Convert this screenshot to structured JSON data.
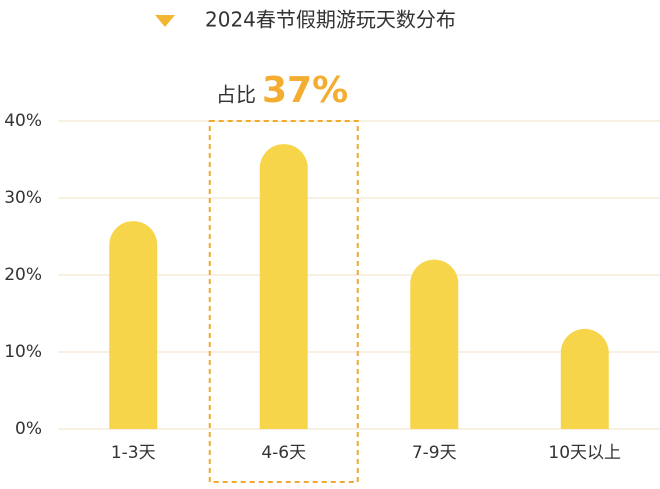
{
  "chart_data": {
    "type": "bar",
    "title": "2024春节假期游玩天数分布",
    "categories": [
      "1-3天",
      "4-6天",
      "7-9天",
      "10天以上"
    ],
    "values": [
      27,
      37,
      22,
      13
    ],
    "value_labels": [
      null,
      "37%",
      null,
      null
    ],
    "annotation": "占比",
    "highlight_index": 1,
    "color": "#f7d54b",
    "ylim": [
      0,
      40
    ],
    "yticks": [
      {
        "value": 0,
        "label": "0%"
      },
      {
        "value": 10,
        "label": "10%"
      },
      {
        "value": 20,
        "label": "20%"
      },
      {
        "value": 30,
        "label": "30%"
      },
      {
        "value": 40,
        "label": "40%"
      }
    ],
    "grid": true
  }
}
